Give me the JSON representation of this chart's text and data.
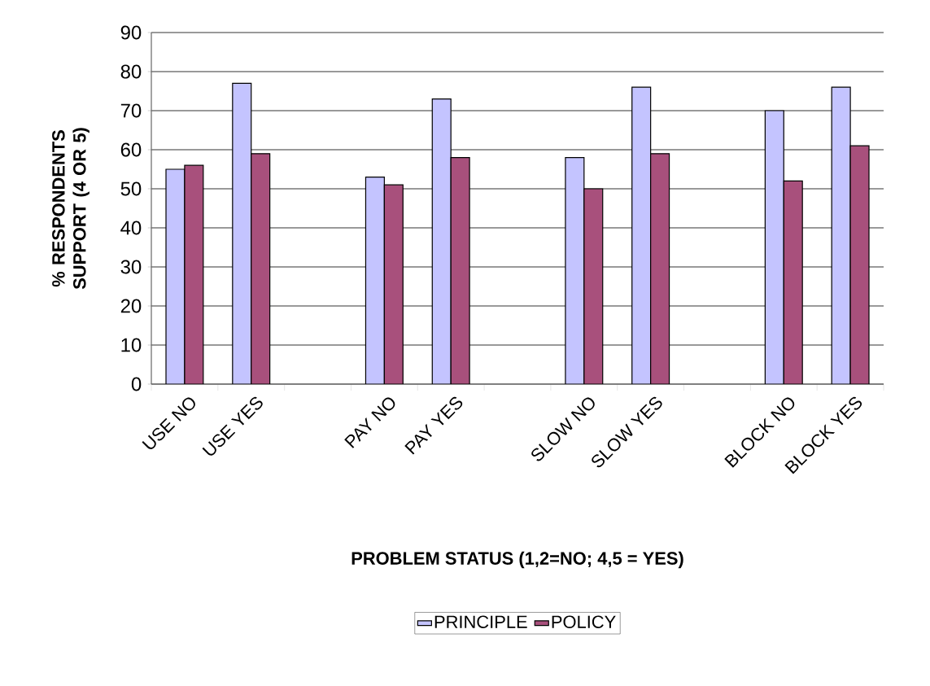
{
  "chart_data": {
    "type": "bar",
    "xlabel": "PROBLEM STATUS (1,2=NO; 4,5 = YES)",
    "ylabel": "% RESPONDENTS SUPPORT (4 OR 5)",
    "categories": [
      "USE NO",
      "USE YES",
      null,
      "PAY NO",
      "PAY YES",
      null,
      "SLOW NO",
      "SLOW YES",
      null,
      "BLOCK NO",
      "BLOCK YES"
    ],
    "series": [
      {
        "name": "PRINCIPLE",
        "color": "#c4c4ff",
        "values": [
          55,
          77,
          null,
          53,
          73,
          null,
          58,
          76,
          null,
          70,
          76
        ]
      },
      {
        "name": "POLICY",
        "color": "#a8507c",
        "values": [
          56,
          59,
          null,
          51,
          58,
          null,
          50,
          59,
          null,
          52,
          61
        ]
      }
    ],
    "ylim": [
      0,
      90
    ],
    "yticks": [
      0,
      10,
      20,
      30,
      40,
      50,
      60,
      70,
      80,
      90
    ],
    "grid": "y",
    "legend": "bottom"
  }
}
